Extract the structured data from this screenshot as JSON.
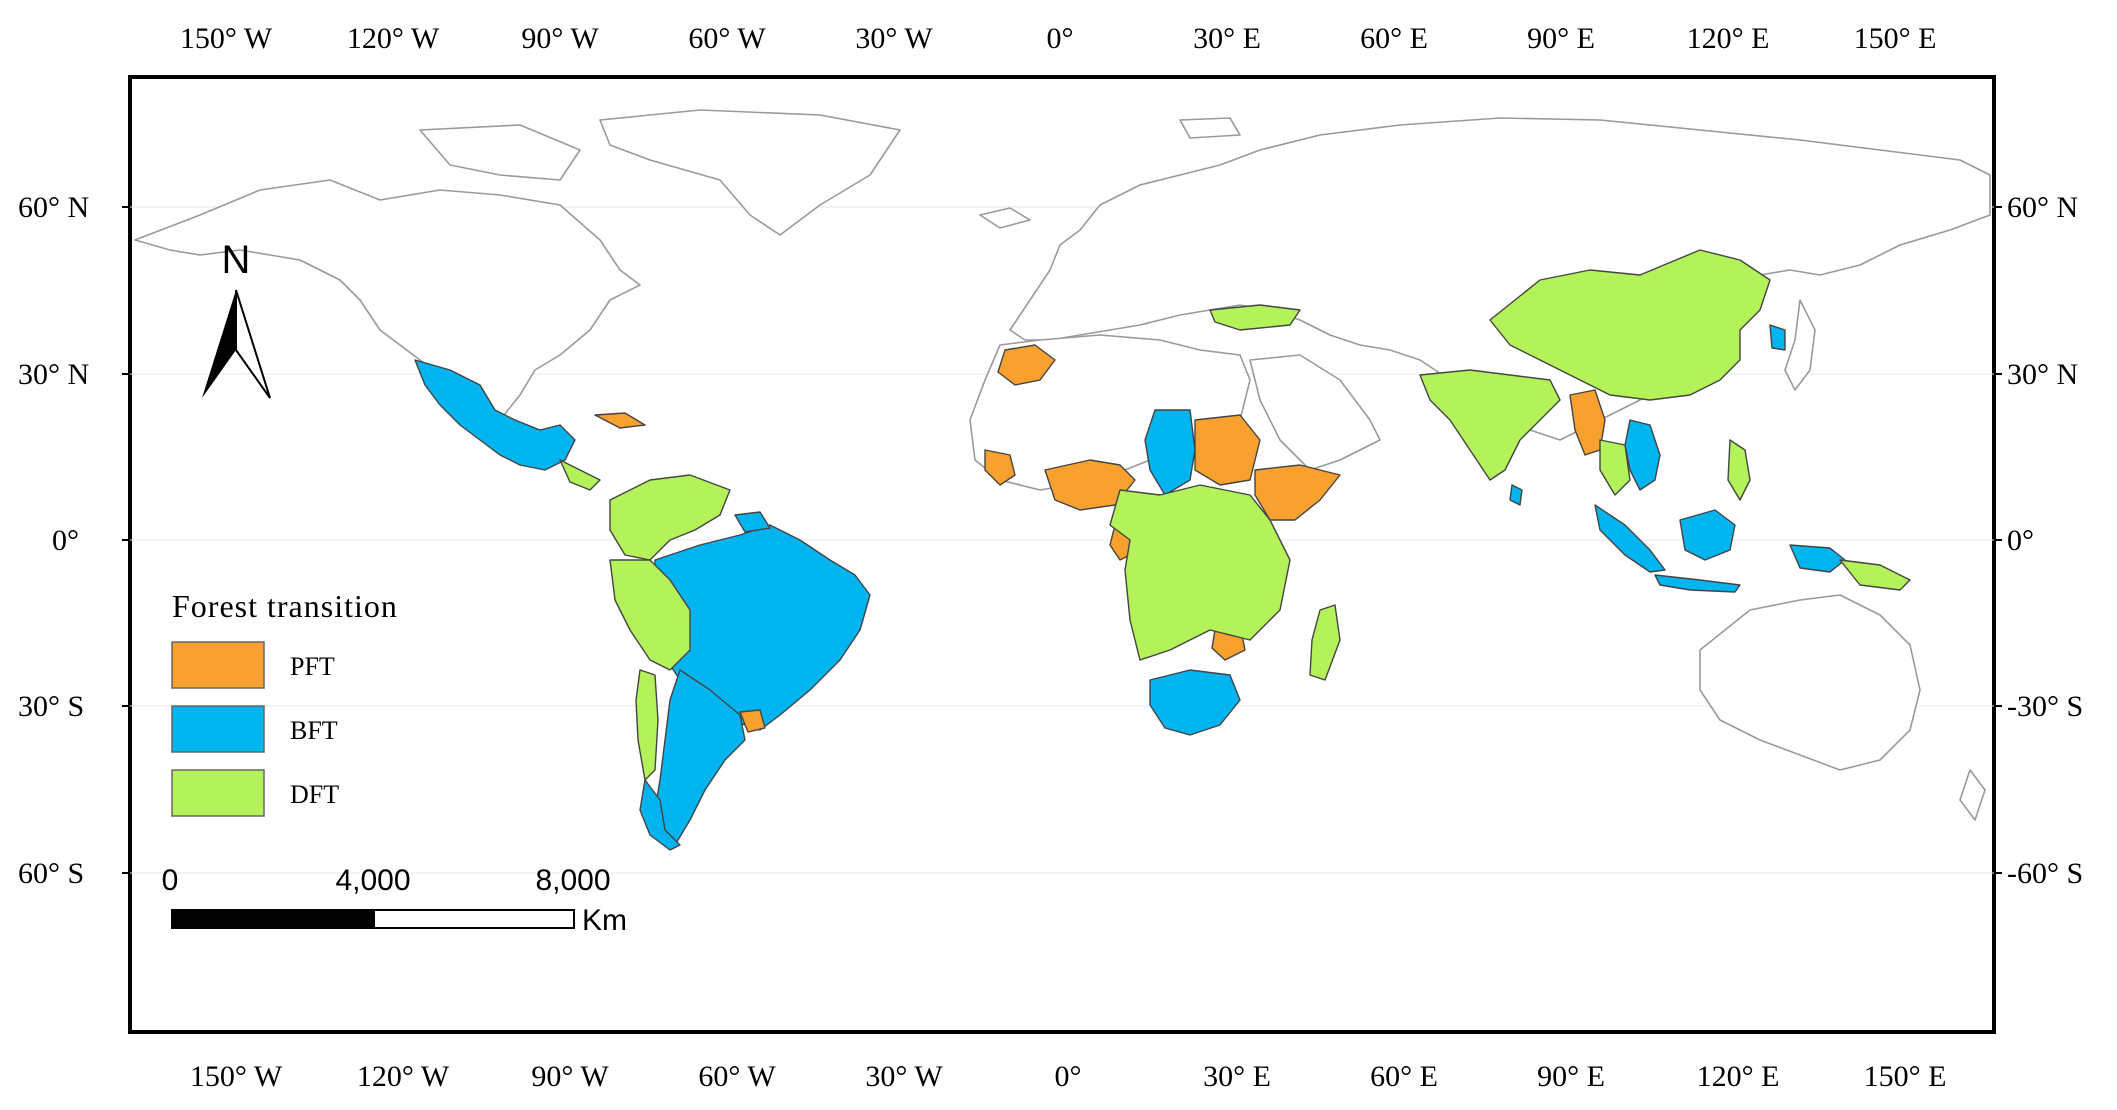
{
  "legend": {
    "title": "Forest transition",
    "items": [
      {
        "label": "PFT",
        "color": "#F9A12E"
      },
      {
        "label": "BFT",
        "color": "#00B4F0"
      },
      {
        "label": "DFT",
        "color": "#B4F25A"
      }
    ]
  },
  "north_arrow": {
    "label": "N"
  },
  "scale_bar": {
    "ticks": [
      "0",
      "4,000",
      "8,000"
    ],
    "unit": "Km"
  },
  "graticule": {
    "longitude_labels": [
      "150° W",
      "120° W",
      "90° W",
      "60° W",
      "30° W",
      "0°",
      "30° E",
      "60° E",
      "90° E",
      "120° E",
      "150° E"
    ],
    "latitude_labels_left": [
      "60° N",
      "30° N",
      "0°",
      "30° S",
      "60° S"
    ],
    "latitude_labels_right": [
      "60° N",
      "30° N",
      "0°",
      "-30° S",
      "-60° S"
    ]
  },
  "colors": {
    "PFT": "#F9A12E",
    "BFT": "#00B4F0",
    "DFT": "#B4F25A",
    "land_outline": "#9a9a9a",
    "frame": "#000000"
  },
  "map_data": {
    "PFT": [
      "Morocco",
      "Sierra Leone",
      "Nigeria",
      "Sudan",
      "Ethiopia",
      "Somalia",
      "Cuba",
      "Uruguay",
      "Myanmar",
      "Bangladesh",
      "Gabon",
      "Zimbabwe"
    ],
    "BFT": [
      "Mexico",
      "Brazil",
      "Argentina",
      "Chile (south)",
      "Chad",
      "South Africa",
      "Vietnam",
      "Indonesia",
      "Papua New Guinea",
      "South Korea",
      "Sri Lanka"
    ],
    "DFT": [
      "China",
      "India",
      "Turkey",
      "Colombia",
      "Venezuela",
      "Peru",
      "Bolivia",
      "Paraguay",
      "Chile (north)",
      "DR Congo",
      "Angola",
      "Zambia",
      "Tanzania",
      "Madagascar",
      "Kenya",
      "Philippines",
      "Thailand",
      "Guatemala"
    ]
  }
}
